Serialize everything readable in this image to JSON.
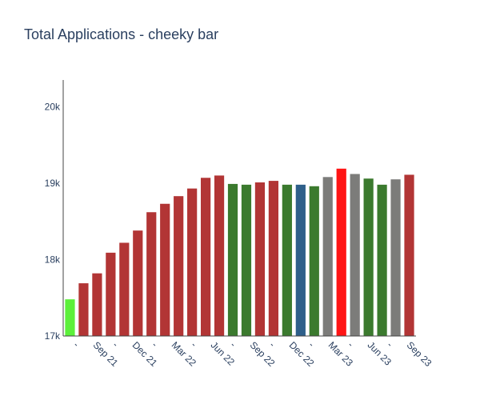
{
  "chart_data": {
    "type": "bar",
    "title": "Total Applications - cheeky bar",
    "xlabel": "",
    "ylabel": "",
    "ylim": [
      17000,
      20350
    ],
    "y_ticks": [
      {
        "value": 17000,
        "label": "17k"
      },
      {
        "value": 18000,
        "label": "18k"
      },
      {
        "value": 19000,
        "label": "19k"
      },
      {
        "value": 20000,
        "label": "20k"
      }
    ],
    "x_tick_labels": [
      "-",
      "Sep 21",
      "-",
      "Dec 21",
      "-",
      "Mar 22",
      "-",
      "Jun 22",
      "-",
      "Sep 22",
      "-",
      "Dec 22",
      "-",
      "Mar 23",
      "-",
      "Jun 23",
      "-",
      "Sep 23"
    ],
    "values": [
      17480,
      17690,
      17820,
      18090,
      18220,
      18380,
      18620,
      18730,
      18830,
      18930,
      19070,
      19100,
      18990,
      18980,
      19010,
      19030,
      18980,
      18980,
      18960,
      19080,
      19190,
      19120,
      19060,
      18980,
      19050,
      19110
    ],
    "colors": [
      "#5cf03a",
      "#b23535",
      "#b23535",
      "#b23535",
      "#b23535",
      "#b23535",
      "#b23535",
      "#b23535",
      "#b23535",
      "#b23535",
      "#b23535",
      "#b23535",
      "#3b7a2e",
      "#3b7a2e",
      "#b23535",
      "#b23535",
      "#3b7a2e",
      "#2e5f8a",
      "#3b7a2e",
      "#7c7c7a",
      "#ff1414",
      "#7c7c7a",
      "#3b7a2e",
      "#3b7a2e",
      "#7c7c7a",
      "#b23535"
    ],
    "grid": false
  }
}
